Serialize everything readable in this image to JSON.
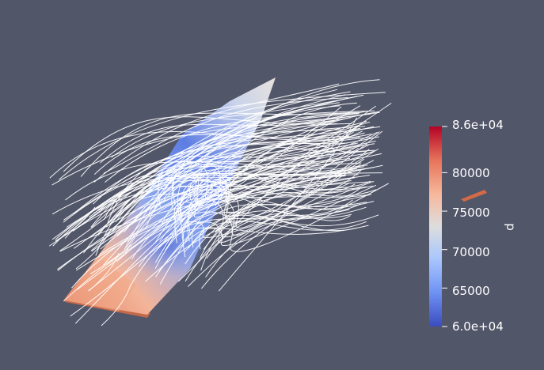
{
  "colors": {
    "background": "#525669",
    "colormap": [
      "#3b4cc0",
      "#6f92f3",
      "#aac7fd",
      "#dddddd",
      "#f7b89c",
      "#e7745b",
      "#b40426"
    ],
    "streamline": "#ffffff"
  },
  "colorbar": {
    "variable": "p",
    "max_label": "8.6e+04",
    "min_label": "6.0e+04",
    "ticks": [
      {
        "value": 80000,
        "label": "80000"
      },
      {
        "value": 75000,
        "label": "75000"
      },
      {
        "value": 70000,
        "label": "70000"
      },
      {
        "value": 65000,
        "label": "65000"
      }
    ],
    "range": [
      60000,
      86000
    ]
  }
}
